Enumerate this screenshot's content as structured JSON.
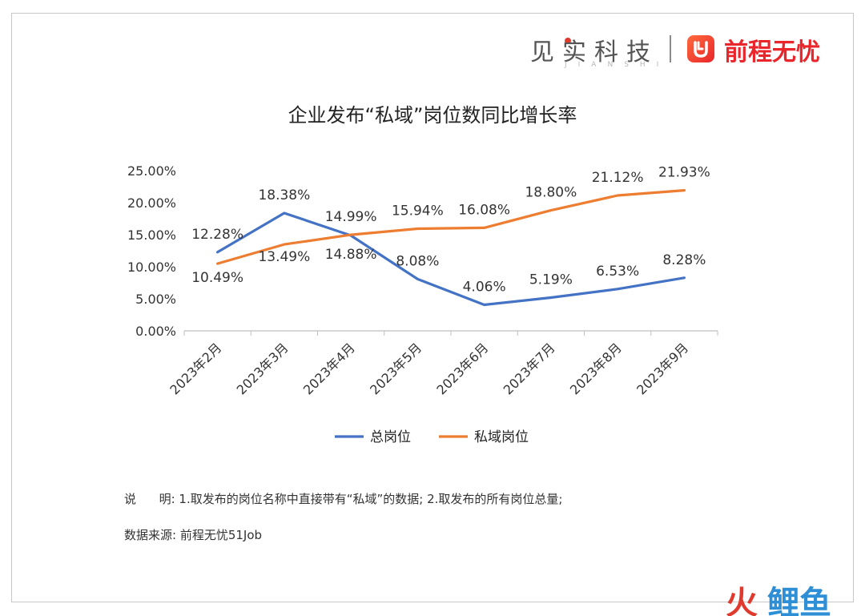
{
  "branding": {
    "jianshi_name": "见实科技",
    "jianshi_sub": "JIANSHI",
    "partner_name": "前程无忧"
  },
  "notes": {
    "description": "说      明: 1.取发布的岗位名称中直接带有“私域”的数据; 2.取发布的所有岗位总量;",
    "source": "数据来源: 前程无忧51Job"
  },
  "watermark": {
    "part1": "火",
    "part2": "鲤鱼"
  },
  "colors": {
    "total": "#4472c4",
    "private": "#ed7d31"
  },
  "chart_data": {
    "type": "line",
    "title": "企业发布“私域”岗位数同比增长率",
    "categories": [
      "2023年2月",
      "2023年3月",
      "2023年4月",
      "2023年5月",
      "2023年6月",
      "2023年7月",
      "2023年8月",
      "2023年9月"
    ],
    "series": [
      {
        "name": "总岗位",
        "values": [
          12.28,
          18.38,
          14.88,
          8.08,
          4.06,
          5.19,
          6.53,
          8.28
        ],
        "labels": [
          "12.28%",
          "18.38%",
          "14.88%",
          "8.08%",
          "4.06%",
          "5.19%",
          "6.53%",
          "8.28%"
        ]
      },
      {
        "name": "私域岗位",
        "values": [
          10.49,
          13.49,
          14.99,
          15.94,
          16.08,
          18.8,
          21.12,
          21.93
        ],
        "labels": [
          "10.49%",
          "13.49%",
          "14.99%",
          "15.94%",
          "16.08%",
          "18.80%",
          "21.12%",
          "21.93%"
        ]
      }
    ],
    "yticks": [
      "0.00%",
      "5.00%",
      "10.00%",
      "15.00%",
      "20.00%",
      "25.00%"
    ],
    "ylim": [
      0,
      25
    ],
    "grid": false,
    "legend_position": "bottom"
  }
}
